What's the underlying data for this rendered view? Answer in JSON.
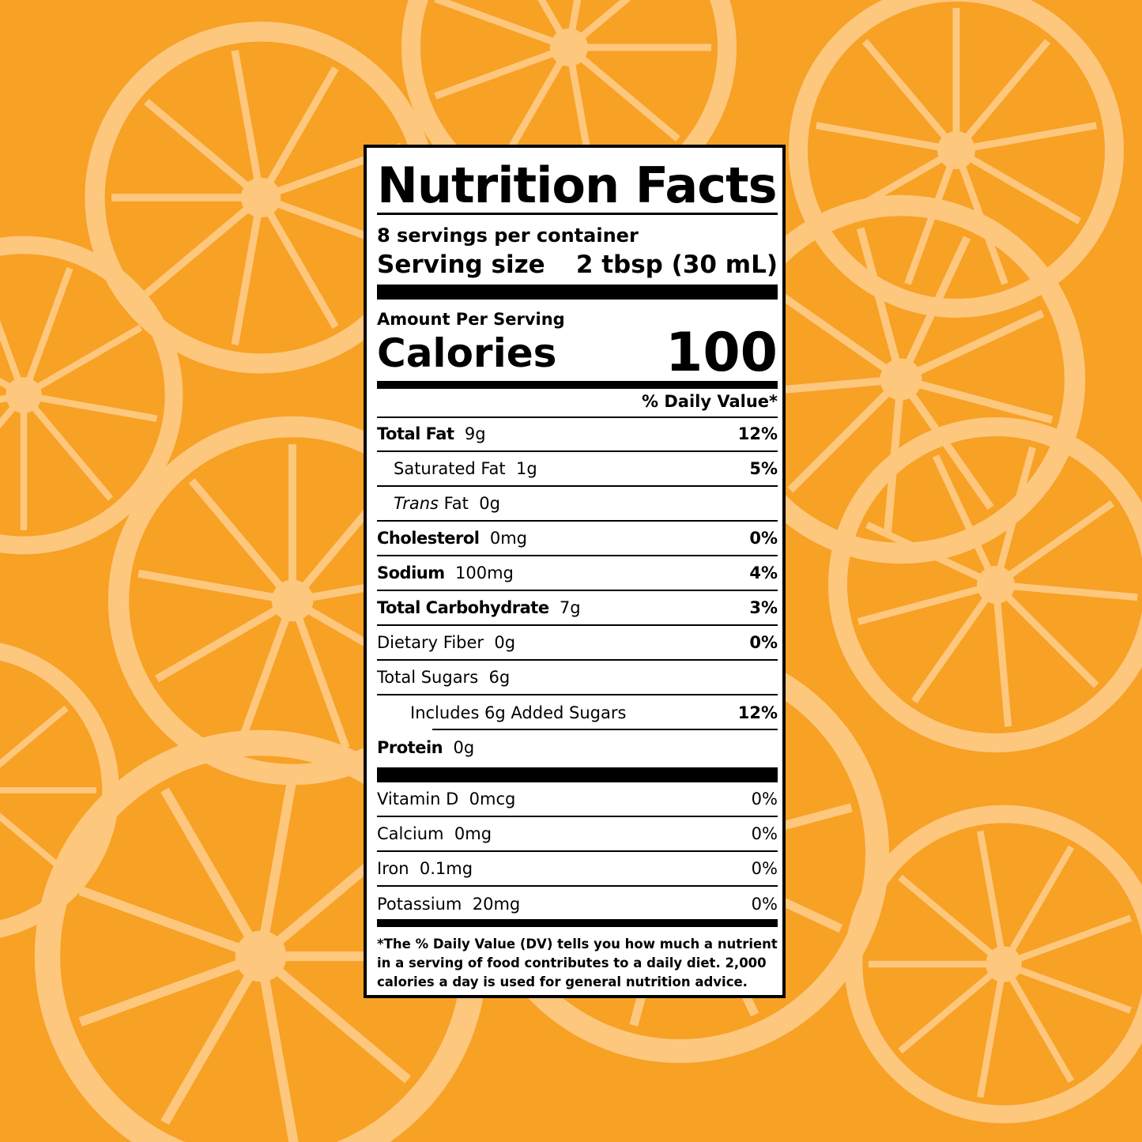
{
  "colors": {
    "background": "#F7A125",
    "slice": "#FDC77E",
    "label_bg": "#FFFFFF",
    "ink": "#000000"
  },
  "label": {
    "title": "Nutrition Facts",
    "servings": "8 servings per container",
    "serving_size_label": "Serving size",
    "serving_size_value": "2 tbsp (30 mL)",
    "amount_per_serving": "Amount Per Serving",
    "calories_label": "Calories",
    "calories_value": "100",
    "dv_header": "% Daily Value*",
    "nutrients": [
      {
        "name": "Total Fat",
        "amount": "9g",
        "dv": "12%"
      },
      {
        "name": "Saturated Fat",
        "amount": "1g",
        "dv": "5%"
      },
      {
        "name_italic": "Trans",
        "name": "Fat",
        "amount": "0g",
        "dv": ""
      },
      {
        "name": "Cholesterol",
        "amount": "0mg",
        "dv": "0%"
      },
      {
        "name": "Sodium",
        "amount": "100mg",
        "dv": "4%"
      },
      {
        "name": "Total Carbohydrate",
        "amount": "7g",
        "dv": "3%"
      },
      {
        "name": "Dietary Fiber",
        "amount": "0g",
        "dv": "0%"
      },
      {
        "name": "Total Sugars",
        "amount": "6g",
        "dv": ""
      },
      {
        "name": "Includes 6g Added Sugars",
        "amount": "",
        "dv": "12%"
      },
      {
        "name": "Protein",
        "amount": "0g",
        "dv": ""
      }
    ],
    "vitamins": [
      {
        "name": "Vitamin D",
        "amount": "0mcg",
        "dv": "0%"
      },
      {
        "name": "Calcium",
        "amount": "0mg",
        "dv": "0%"
      },
      {
        "name": "Iron",
        "amount": "0.1mg",
        "dv": "0%"
      },
      {
        "name": "Potassium",
        "amount": "20mg",
        "dv": "0%"
      }
    ],
    "footnote": "*The % Daily Value (DV) tells you how much a nutrient in a serving of food contributes to a daily diet. 2,000 calories a day is used for general nutrition advice."
  }
}
